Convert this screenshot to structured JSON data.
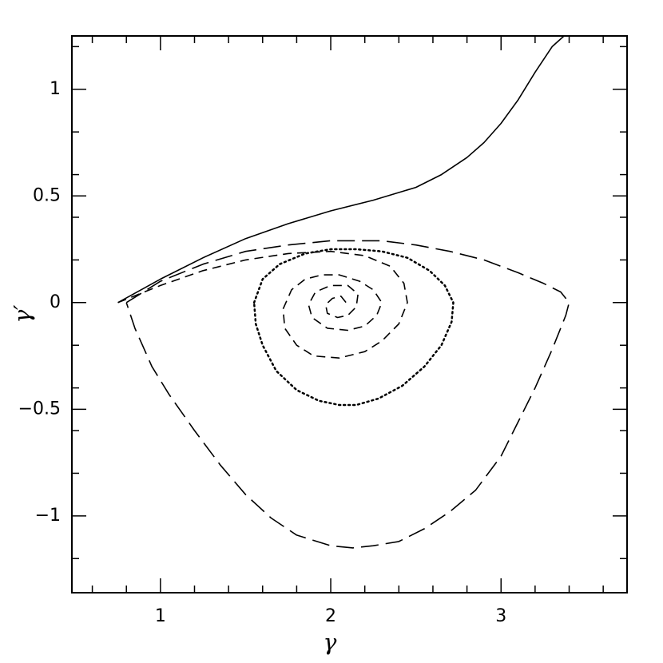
{
  "chart_data": {
    "type": "line",
    "x_label": "γ",
    "y_label": "γ′",
    "xlim": [
      0.48,
      3.74
    ],
    "ylim": [
      -1.36,
      1.25
    ],
    "xticks": [
      1,
      2,
      3
    ],
    "yticks": [
      {
        "value": -1,
        "label": "−1"
      },
      {
        "value": -0.5,
        "label": "−0.5"
      },
      0,
      0.5,
      1
    ],
    "xminorticks": [
      0.6,
      0.8,
      1.2,
      1.4,
      1.6,
      1.8,
      2.2,
      2.4,
      2.6,
      2.8,
      3.2,
      3.4,
      3.6
    ],
    "yminorticks": [
      -1.2,
      -0.8,
      -0.6,
      -0.4,
      -0.2,
      0.2,
      0.4,
      0.6,
      0.8,
      1.2
    ],
    "series": [
      {
        "color": "#000000",
        "dash": "solid",
        "x": [
          0.75,
          1.0,
          1.25,
          1.5,
          1.75,
          2.0,
          2.25,
          2.5,
          2.65,
          2.8,
          2.9,
          3.0,
          3.1,
          3.2,
          3.3,
          3.37
        ],
        "values": [
          0.0,
          0.11,
          0.21,
          0.3,
          0.37,
          0.43,
          0.48,
          0.54,
          0.6,
          0.68,
          0.75,
          0.84,
          0.95,
          1.08,
          1.2,
          1.25
        ]
      },
      {
        "color": "#000000",
        "dash": "long-dash",
        "x": [
          0.8,
          1.0,
          1.25,
          1.5,
          1.75,
          2.0,
          2.3,
          2.5,
          2.7,
          2.9,
          3.1,
          3.25,
          3.35,
          3.4,
          3.38,
          3.3,
          3.2,
          3.0,
          2.85,
          2.7,
          2.55,
          2.4,
          2.25,
          2.13,
          2.0,
          1.8,
          1.65,
          1.5,
          1.35,
          1.2,
          1.05,
          0.95,
          0.85,
          0.8
        ],
        "values": [
          0.0,
          0.1,
          0.18,
          0.24,
          0.27,
          0.29,
          0.29,
          0.27,
          0.24,
          0.2,
          0.14,
          0.09,
          0.05,
          0.0,
          -0.06,
          -0.22,
          -0.4,
          -0.72,
          -0.88,
          -0.98,
          -1.06,
          -1.12,
          -1.14,
          -1.15,
          -1.14,
          -1.09,
          -1.01,
          -0.9,
          -0.76,
          -0.6,
          -0.43,
          -0.3,
          -0.12,
          0.0
        ]
      },
      {
        "color": "#000000",
        "dash": "dash",
        "x": [
          0.75,
          1.0,
          1.25,
          1.5,
          1.75,
          2.0,
          2.2,
          2.35,
          2.43,
          2.45,
          2.4,
          2.3,
          2.2,
          2.05,
          1.9,
          1.8,
          1.73,
          1.72,
          1.77,
          1.85,
          1.95,
          2.05,
          2.17,
          2.25,
          2.3,
          2.27,
          2.2,
          2.1,
          1.98,
          1.89,
          1.87,
          1.91,
          2.0,
          2.1,
          2.16,
          2.15,
          2.1,
          2.04,
          1.98,
          1.97,
          2.01,
          2.06,
          2.09
        ],
        "values": [
          0.0,
          0.08,
          0.15,
          0.2,
          0.23,
          0.24,
          0.22,
          0.17,
          0.09,
          0.0,
          -0.1,
          -0.18,
          -0.23,
          -0.26,
          -0.25,
          -0.2,
          -0.12,
          -0.03,
          0.06,
          0.11,
          0.13,
          0.13,
          0.1,
          0.06,
          0.0,
          -0.06,
          -0.11,
          -0.13,
          -0.12,
          -0.07,
          -0.01,
          0.05,
          0.08,
          0.08,
          0.04,
          -0.02,
          -0.06,
          -0.07,
          -0.05,
          -0.01,
          0.02,
          0.03,
          0.0
        ]
      },
      {
        "color": "#000000",
        "dash": "dot",
        "x": [
          1.55,
          1.6,
          1.7,
          1.85,
          2.0,
          2.15,
          2.3,
          2.45,
          2.58,
          2.67,
          2.72,
          2.71,
          2.65,
          2.55,
          2.42,
          2.28,
          2.15,
          2.05,
          1.93,
          1.8,
          1.68,
          1.6,
          1.56,
          1.55
        ],
        "values": [
          0.0,
          0.11,
          0.18,
          0.23,
          0.25,
          0.25,
          0.24,
          0.21,
          0.15,
          0.08,
          0.0,
          -0.09,
          -0.2,
          -0.3,
          -0.39,
          -0.45,
          -0.48,
          -0.48,
          -0.46,
          -0.41,
          -0.32,
          -0.2,
          -0.1,
          0.0
        ]
      }
    ]
  }
}
